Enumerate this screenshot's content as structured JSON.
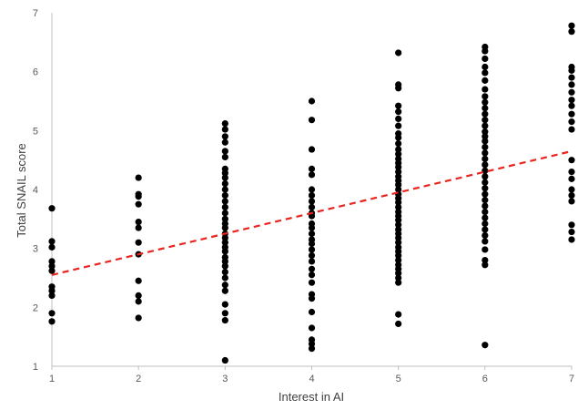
{
  "chart_data": {
    "type": "scatter",
    "title": "",
    "xlabel": "Interest in AI",
    "ylabel": "Total SNAIL score",
    "xlim": [
      1,
      7
    ],
    "ylim": [
      1,
      7
    ],
    "x_ticks": [
      1,
      2,
      3,
      4,
      5,
      6,
      7
    ],
    "y_ticks": [
      1,
      2,
      3,
      4,
      5,
      6,
      7
    ],
    "grid": false,
    "legend": "none",
    "point_color": "#000000",
    "trendline": {
      "type": "linear",
      "color": "#e8251e",
      "style": "dashed",
      "points": [
        [
          1,
          2.55
        ],
        [
          7,
          4.65
        ]
      ]
    },
    "points": [
      [
        1,
        3.68
      ],
      [
        1,
        3.12
      ],
      [
        1,
        3.02
      ],
      [
        1,
        2.78
      ],
      [
        1,
        2.7
      ],
      [
        1,
        2.62
      ],
      [
        1,
        2.35
      ],
      [
        1,
        2.28
      ],
      [
        1,
        2.2
      ],
      [
        1,
        1.9
      ],
      [
        1,
        1.76
      ],
      [
        2,
        4.2
      ],
      [
        2,
        3.92
      ],
      [
        2,
        3.88
      ],
      [
        2,
        3.75
      ],
      [
        2,
        3.45
      ],
      [
        2,
        3.35
      ],
      [
        2,
        3.1
      ],
      [
        2,
        2.9
      ],
      [
        2,
        2.45
      ],
      [
        2,
        2.2
      ],
      [
        2,
        2.1
      ],
      [
        2,
        1.82
      ],
      [
        3,
        5.12
      ],
      [
        3,
        5.02
      ],
      [
        3,
        4.9
      ],
      [
        3,
        4.8
      ],
      [
        3,
        4.65
      ],
      [
        3,
        4.55
      ],
      [
        3,
        4.35
      ],
      [
        3,
        4.28
      ],
      [
        3,
        4.2
      ],
      [
        3,
        4.1
      ],
      [
        3,
        4.0
      ],
      [
        3,
        3.9
      ],
      [
        3,
        3.8
      ],
      [
        3,
        3.7
      ],
      [
        3,
        3.6
      ],
      [
        3,
        3.5
      ],
      [
        3,
        3.42
      ],
      [
        3,
        3.35
      ],
      [
        3,
        3.25
      ],
      [
        3,
        3.18
      ],
      [
        3,
        3.1
      ],
      [
        3,
        3.02
      ],
      [
        3,
        2.95
      ],
      [
        3,
        2.85
      ],
      [
        3,
        2.78
      ],
      [
        3,
        2.7
      ],
      [
        3,
        2.6
      ],
      [
        3,
        2.5
      ],
      [
        3,
        2.38
      ],
      [
        3,
        2.28
      ],
      [
        3,
        2.05
      ],
      [
        3,
        1.9
      ],
      [
        3,
        1.78
      ],
      [
        3,
        1.1
      ],
      [
        4,
        5.5
      ],
      [
        4,
        5.18
      ],
      [
        4,
        4.68
      ],
      [
        4,
        4.35
      ],
      [
        4,
        4.25
      ],
      [
        4,
        4.0
      ],
      [
        4,
        3.9
      ],
      [
        4,
        3.8
      ],
      [
        4,
        3.7
      ],
      [
        4,
        3.6
      ],
      [
        4,
        3.55
      ],
      [
        4,
        3.42
      ],
      [
        4,
        3.35
      ],
      [
        4,
        3.25
      ],
      [
        4,
        3.15
      ],
      [
        4,
        3.08
      ],
      [
        4,
        2.98
      ],
      [
        4,
        2.88
      ],
      [
        4,
        2.78
      ],
      [
        4,
        2.65
      ],
      [
        4,
        2.55
      ],
      [
        4,
        2.42
      ],
      [
        4,
        2.22
      ],
      [
        4,
        2.15
      ],
      [
        4,
        1.92
      ],
      [
        4,
        1.65
      ],
      [
        4,
        1.45
      ],
      [
        4,
        1.38
      ],
      [
        4,
        1.3
      ],
      [
        5,
        6.32
      ],
      [
        5,
        5.78
      ],
      [
        5,
        5.72
      ],
      [
        5,
        5.42
      ],
      [
        5,
        5.32
      ],
      [
        5,
        5.2
      ],
      [
        5,
        5.08
      ],
      [
        5,
        4.95
      ],
      [
        5,
        4.88
      ],
      [
        5,
        4.78
      ],
      [
        5,
        4.68
      ],
      [
        5,
        4.6
      ],
      [
        5,
        4.52
      ],
      [
        5,
        4.45
      ],
      [
        5,
        4.38
      ],
      [
        5,
        4.3
      ],
      [
        5,
        4.22
      ],
      [
        5,
        4.15
      ],
      [
        5,
        4.08
      ],
      [
        5,
        4.0
      ],
      [
        5,
        3.92
      ],
      [
        5,
        3.85
      ],
      [
        5,
        3.78
      ],
      [
        5,
        3.7
      ],
      [
        5,
        3.62
      ],
      [
        5,
        3.55
      ],
      [
        5,
        3.48
      ],
      [
        5,
        3.4
      ],
      [
        5,
        3.32
      ],
      [
        5,
        3.25
      ],
      [
        5,
        3.18
      ],
      [
        5,
        3.1
      ],
      [
        5,
        3.02
      ],
      [
        5,
        2.95
      ],
      [
        5,
        2.88
      ],
      [
        5,
        2.8
      ],
      [
        5,
        2.72
      ],
      [
        5,
        2.65
      ],
      [
        5,
        2.58
      ],
      [
        5,
        2.5
      ],
      [
        5,
        2.42
      ],
      [
        5,
        1.88
      ],
      [
        5,
        1.72
      ],
      [
        6,
        6.42
      ],
      [
        6,
        6.35
      ],
      [
        6,
        6.22
      ],
      [
        6,
        6.08
      ],
      [
        6,
        5.98
      ],
      [
        6,
        5.85
      ],
      [
        6,
        5.7
      ],
      [
        6,
        5.58
      ],
      [
        6,
        5.48
      ],
      [
        6,
        5.38
      ],
      [
        6,
        5.28
      ],
      [
        6,
        5.18
      ],
      [
        6,
        5.08
      ],
      [
        6,
        4.98
      ],
      [
        6,
        4.9
      ],
      [
        6,
        4.82
      ],
      [
        6,
        4.72
      ],
      [
        6,
        4.62
      ],
      [
        6,
        4.52
      ],
      [
        6,
        4.42
      ],
      [
        6,
        4.32
      ],
      [
        6,
        4.22
      ],
      [
        6,
        4.12
      ],
      [
        6,
        4.02
      ],
      [
        6,
        3.92
      ],
      [
        6,
        3.82
      ],
      [
        6,
        3.72
      ],
      [
        6,
        3.62
      ],
      [
        6,
        3.52
      ],
      [
        6,
        3.42
      ],
      [
        6,
        3.32
      ],
      [
        6,
        3.22
      ],
      [
        6,
        3.12
      ],
      [
        6,
        2.98
      ],
      [
        6,
        2.8
      ],
      [
        6,
        2.72
      ],
      [
        6,
        1.36
      ],
      [
        7,
        6.78
      ],
      [
        7,
        6.68
      ],
      [
        7,
        6.08
      ],
      [
        7,
        6.02
      ],
      [
        7,
        5.9
      ],
      [
        7,
        5.78
      ],
      [
        7,
        5.65
      ],
      [
        7,
        5.52
      ],
      [
        7,
        5.42
      ],
      [
        7,
        5.28
      ],
      [
        7,
        5.15
      ],
      [
        7,
        5.02
      ],
      [
        7,
        4.5
      ],
      [
        7,
        4.3
      ],
      [
        7,
        4.18
      ],
      [
        7,
        4.0
      ],
      [
        7,
        3.9
      ],
      [
        7,
        3.8
      ],
      [
        7,
        3.4
      ],
      [
        7,
        3.28
      ],
      [
        7,
        3.15
      ]
    ]
  }
}
